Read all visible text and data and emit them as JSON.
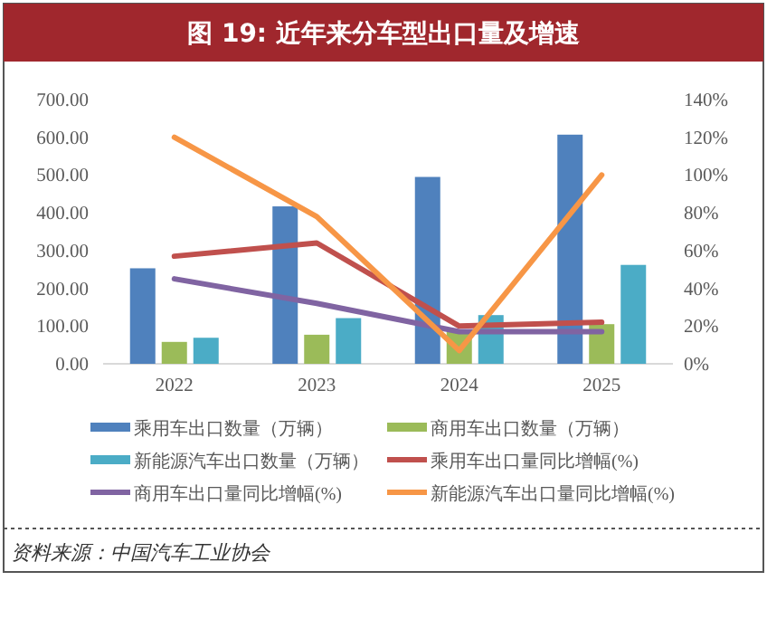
{
  "chart_data": {
    "type": "bar",
    "title": "图 19: 近年来分车型出口量及增速",
    "categories": [
      "2022",
      "2023",
      "2024",
      "2025"
    ],
    "series": [
      {
        "name": "乘用车出口数量（万辆）",
        "color": "#4f81bd",
        "values": [
          253,
          417,
          495,
          607
        ]
      },
      {
        "name": "商用车出口数量（万辆）",
        "color": "#9bbb59",
        "values": [
          58,
          77,
          85,
          105
        ]
      },
      {
        "name": "新能源汽车出口数量（万辆）",
        "color": "#4bacc6",
        "values": [
          69,
          121,
          129,
          262
        ]
      },
      {
        "name": "乘用车出口量同比增幅(%)",
        "type": "line",
        "axis": "y2",
        "color": "#c0504d",
        "values": [
          57,
          64,
          20,
          22
        ]
      },
      {
        "name": "商用车出口量同比增幅(%)",
        "type": "line",
        "axis": "y2",
        "color": "#8064a2",
        "values": [
          45,
          32,
          17,
          17
        ]
      },
      {
        "name": "新能源汽车出口量同比增幅(%)",
        "type": "line",
        "axis": "y2",
        "color": "#f79646",
        "values": [
          120,
          78,
          7,
          100
        ]
      }
    ],
    "ylim": [
      0,
      700
    ],
    "yticks": [
      {
        "value": 0,
        "label": "0.00"
      },
      {
        "value": 100,
        "label": "100.00"
      },
      {
        "value": 200,
        "label": "200.00"
      },
      {
        "value": 300,
        "label": "300.00"
      },
      {
        "value": 400,
        "label": "400.00"
      },
      {
        "value": 500,
        "label": "500.00"
      },
      {
        "value": 600,
        "label": "600.00"
      },
      {
        "value": 700,
        "label": "700.00"
      }
    ],
    "y2lim": [
      0,
      140
    ],
    "y2ticks": [
      {
        "value": 0,
        "label": "0%"
      },
      {
        "value": 20,
        "label": "20%"
      },
      {
        "value": 40,
        "label": "40%"
      },
      {
        "value": 60,
        "label": "60%"
      },
      {
        "value": 80,
        "label": "80%"
      },
      {
        "value": 100,
        "label": "100%"
      },
      {
        "value": 120,
        "label": "120%"
      },
      {
        "value": 140,
        "label": "140%"
      }
    ],
    "grid": false,
    "legend": "bottom",
    "marker": "none",
    "line_style": "solid",
    "annotations": [
      "资料来源：中国汽车工业协会"
    ]
  }
}
